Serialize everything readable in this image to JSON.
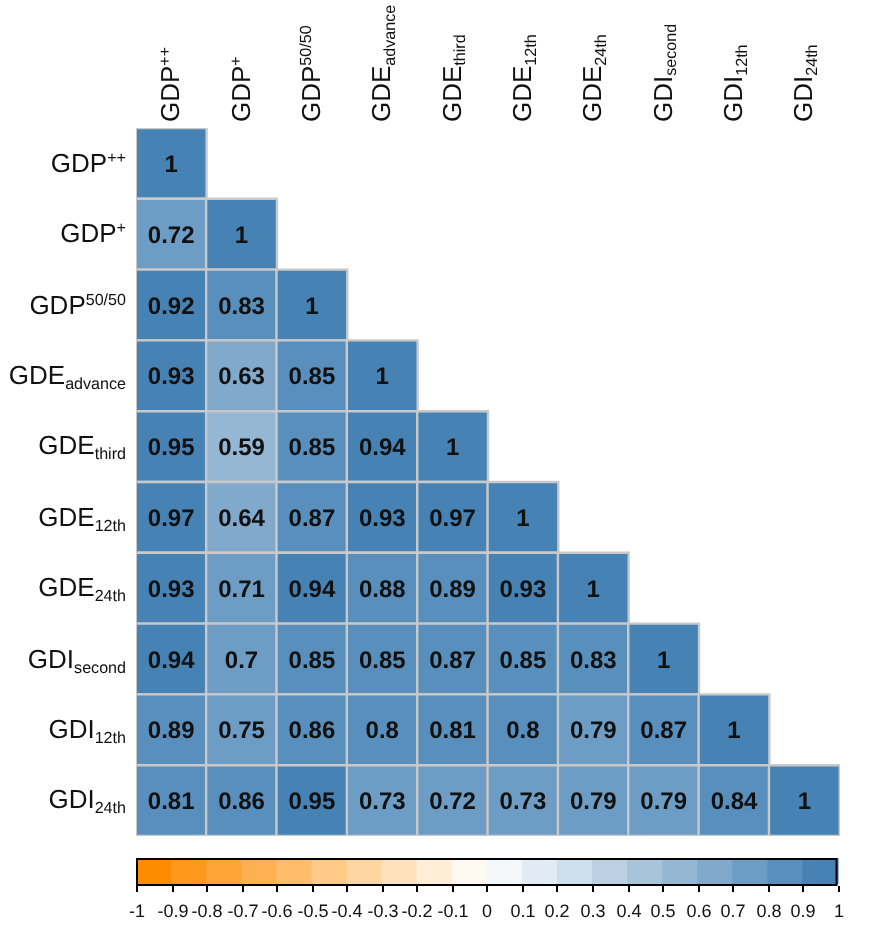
{
  "chart_data": {
    "type": "heatmap",
    "categories": [
      "GDP$^{++}$",
      "GDP$^{+}$",
      "GDP$^{50/50}$",
      "GDE$_{advance}$",
      "GDE$_{third}$",
      "GDE$_{12th}$",
      "GDE$_{24th}$",
      "GDI$_{second}$",
      "GDI$_{12th}$",
      "GDI$_{24th}$"
    ],
    "y_categories": [
      "GDP$^{++}$",
      "GDP$^{+}$",
      "GDP$^{50/50}$",
      "GDE$_{advance}$",
      "GDE$_{third}$",
      "GDE$_{12th}$",
      "GDE$_{24th}$",
      "GDI$_{second}$",
      "GDI$_{12th}$",
      "GDI$_{24th}$"
    ],
    "cells": [
      [
        1,
        null,
        null,
        null,
        null,
        null,
        null,
        null,
        null,
        null
      ],
      [
        0.72,
        1,
        null,
        null,
        null,
        null,
        null,
        null,
        null,
        null
      ],
      [
        0.92,
        0.83,
        1,
        null,
        null,
        null,
        null,
        null,
        null,
        null
      ],
      [
        0.93,
        0.63,
        0.85,
        1,
        null,
        null,
        null,
        null,
        null,
        null
      ],
      [
        0.95,
        0.59,
        0.85,
        0.94,
        1,
        null,
        null,
        null,
        null,
        null
      ],
      [
        0.97,
        0.64,
        0.87,
        0.93,
        0.97,
        1,
        null,
        null,
        null,
        null
      ],
      [
        0.93,
        0.71,
        0.94,
        0.88,
        0.89,
        0.93,
        1,
        null,
        null,
        null
      ],
      [
        0.94,
        0.7,
        0.85,
        0.85,
        0.87,
        0.85,
        0.83,
        1,
        null,
        null
      ],
      [
        0.89,
        0.75,
        0.86,
        0.8,
        0.81,
        0.8,
        0.79,
        0.87,
        1,
        null
      ],
      [
        0.81,
        0.86,
        0.95,
        0.73,
        0.72,
        0.73,
        0.79,
        0.79,
        0.84,
        1
      ]
    ],
    "clim": [
      -1,
      1
    ],
    "cticks": [
      -1,
      -0.9,
      -0.8,
      -0.7,
      -0.6,
      -0.5,
      -0.4,
      -0.3,
      -0.2,
      -0.1,
      0,
      0.1,
      0.2,
      0.3,
      0.4,
      0.5,
      0.6,
      0.7,
      0.8,
      0.9,
      1
    ],
    "data_labels": true
  }
}
